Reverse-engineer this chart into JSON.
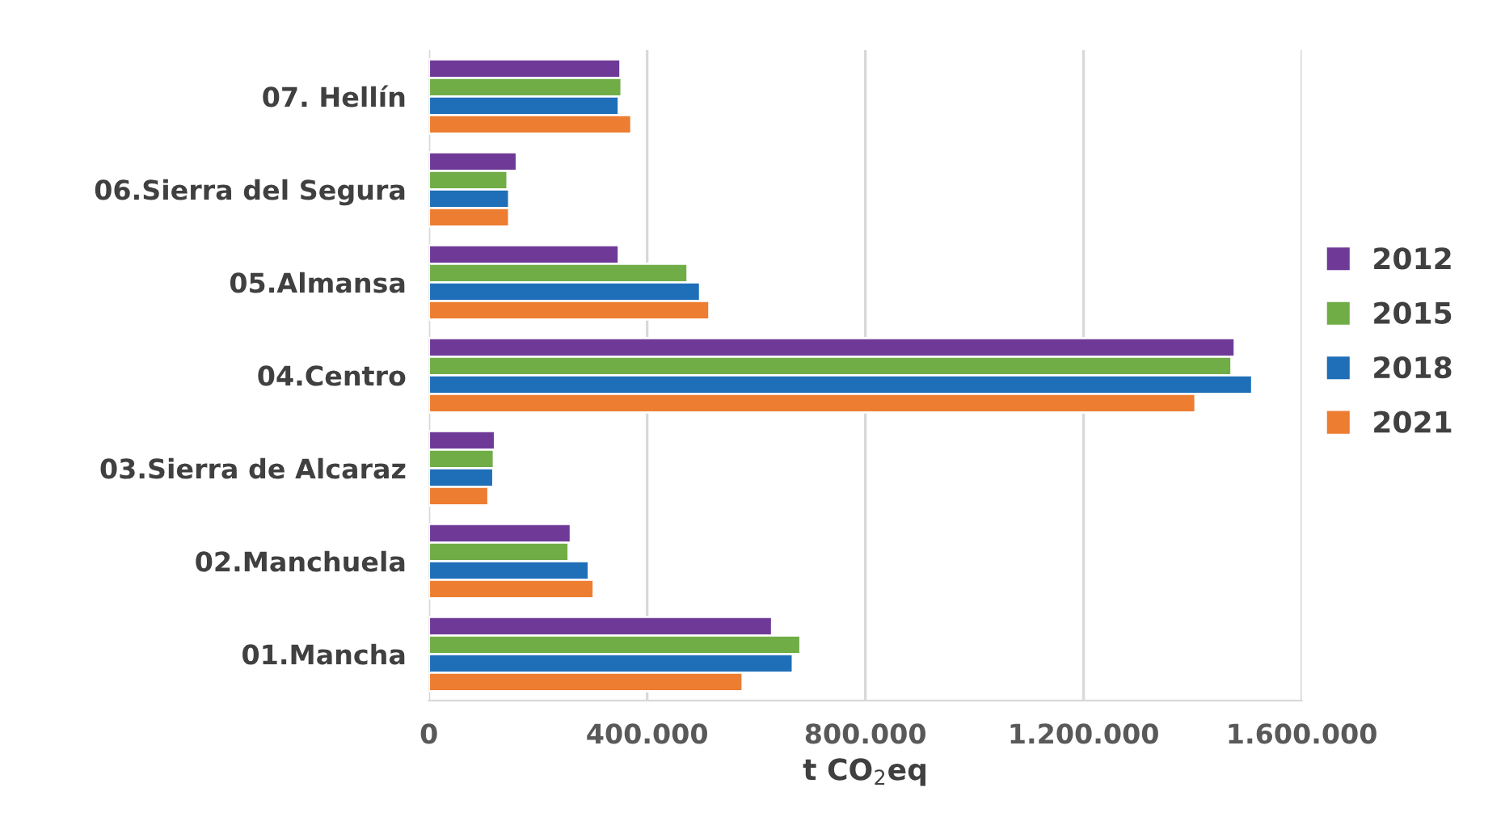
{
  "chart_data": {
    "type": "bar",
    "orientation": "horizontal",
    "xlabel": "t CO$_{2}$eq",
    "categories": [
      "07. Hellín",
      "06.Sierra del Segura",
      "05.Almansa",
      "04.Centro",
      "03.Sierra de Alcaraz",
      "02.Manchuela",
      "01.Mancha"
    ],
    "series": [
      {
        "name": "2012",
        "color": "#6f3a97",
        "values": [
          351000,
          161000,
          348000,
          1477000,
          121000,
          260000,
          629000
        ]
      },
      {
        "name": "2015",
        "color": "#70ad47",
        "values": [
          353000,
          144000,
          474000,
          1471000,
          119000,
          256000,
          681000
        ]
      },
      {
        "name": "2018",
        "color": "#1f6fb8",
        "values": [
          348000,
          147000,
          497000,
          1509000,
          118000,
          293000,
          667000
        ]
      },
      {
        "name": "2021",
        "color": "#ed7d31",
        "values": [
          371000,
          147000,
          514000,
          1405000,
          109000,
          302000,
          575000
        ]
      }
    ],
    "xlim": [
      0,
      1600000
    ],
    "xticks": [
      {
        "value": 0,
        "label": "0"
      },
      {
        "value": 400000,
        "label": "400.000"
      },
      {
        "value": 800000,
        "label": "800.000"
      },
      {
        "value": 1200000,
        "label": "1.200.000"
      },
      {
        "value": 1600000,
        "label": "1.600.000"
      }
    ],
    "grid": "x",
    "legend": "right"
  }
}
